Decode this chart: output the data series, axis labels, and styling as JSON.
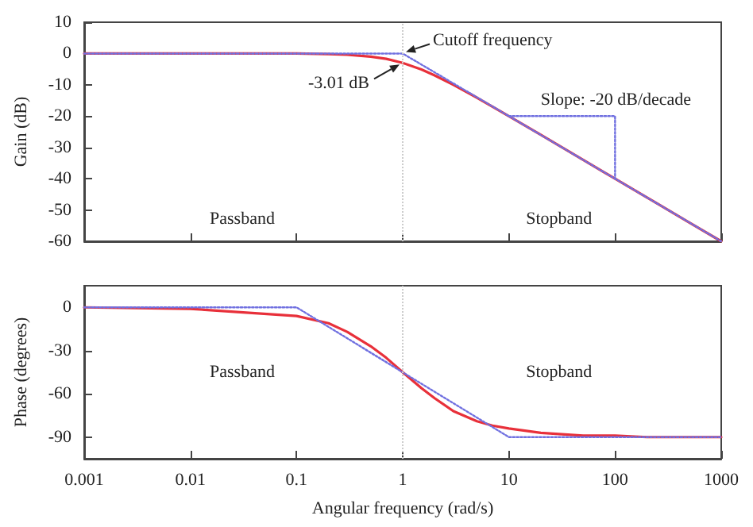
{
  "chart_data": [
    {
      "type": "line",
      "ylabel": "Gain (dB)",
      "log": "x",
      "grid": false,
      "marker": "none",
      "tick_labels": "y",
      "xlim": [
        0.001,
        1000
      ],
      "xticks": [
        0.001,
        0.01,
        0.1,
        1,
        10,
        100,
        1000
      ],
      "ylim": [
        -60,
        10
      ],
      "yticks": [
        -60,
        -50,
        -40,
        -30,
        -20,
        -10,
        0,
        10
      ],
      "series": [
        {
          "color": "#e8303a",
          "line_style": "solid",
          "x": [
            0.001,
            0.01,
            0.1,
            0.2,
            0.3,
            0.5,
            0.7,
            1,
            1.5,
            2,
            3,
            5,
            7,
            10,
            20,
            50,
            100,
            200,
            500,
            1000
          ],
          "values": [
            0,
            0,
            0,
            -0.2,
            -0.4,
            -1,
            -1.7,
            -3,
            -5.1,
            -7,
            -10,
            -14.1,
            -17,
            -20,
            -26,
            -34,
            -40,
            -46,
            -54,
            -60
          ]
        },
        {
          "color": "#7070e0",
          "line_style": "dotted",
          "x": [
            0.001,
            1,
            1000
          ],
          "values": [
            0,
            0,
            -60
          ]
        },
        {
          "color": "#7070e0",
          "line_style": "dotted",
          "x": [
            10,
            100,
            100
          ],
          "values": [
            -20,
            -20,
            -40
          ]
        }
      ],
      "ref_lines": [
        {
          "axis": "x",
          "value": 1,
          "color": "#cccccc",
          "line_style": "dotted"
        }
      ],
      "annotations": [
        {
          "text": "Cutoff frequency",
          "x": 1,
          "y": 0
        },
        {
          "text": "-3.01 dB",
          "x": 1,
          "y": -3.01
        },
        "Slope: -20 dB/decade",
        "Passband",
        "Stopband"
      ]
    },
    {
      "type": "line",
      "ylabel": "Phase (degrees)",
      "xlabel": "Angular frequency (rad/s)",
      "log": "x",
      "grid": false,
      "marker": "none",
      "xlim": [
        0.001,
        1000
      ],
      "xticks": [
        0.001,
        0.01,
        0.1,
        1,
        10,
        100,
        1000
      ],
      "ylim": [
        -105,
        15
      ],
      "yticks": [
        -90,
        -60,
        -30,
        0
      ],
      "series": [
        {
          "color": "#e8303a",
          "line_style": "solid",
          "x": [
            0.001,
            0.01,
            0.1,
            0.2,
            0.3,
            0.5,
            0.7,
            1,
            1.5,
            2,
            3,
            5,
            7,
            10,
            20,
            50,
            100,
            200,
            1000
          ],
          "values": [
            0,
            -1,
            -6,
            -11,
            -17,
            -27,
            -35,
            -45,
            -56,
            -63,
            -72,
            -79,
            -82,
            -84,
            -87,
            -89,
            -89,
            -90,
            -90
          ]
        },
        {
          "color": "#7070e0",
          "line_style": "dotted",
          "x": [
            0.001,
            0.1,
            10,
            1000
          ],
          "values": [
            0,
            0,
            -90,
            -90
          ]
        }
      ],
      "ref_lines": [
        {
          "axis": "x",
          "value": 1,
          "color": "#cccccc",
          "line_style": "dotted"
        }
      ],
      "annotations": [
        "Passband",
        "Stopband"
      ]
    }
  ]
}
